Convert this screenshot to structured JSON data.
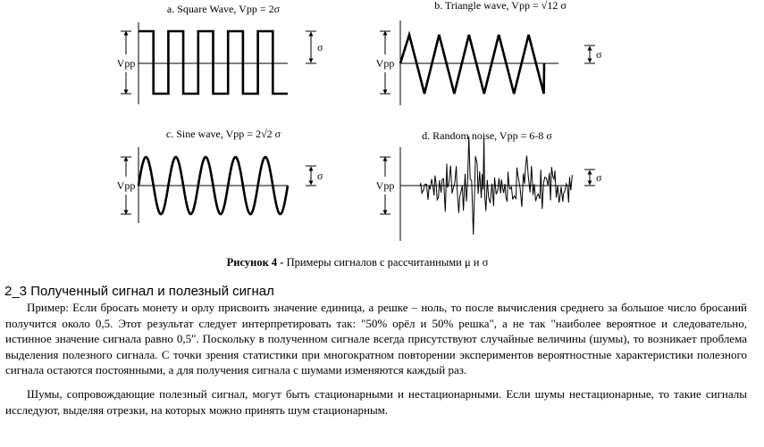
{
  "figure": {
    "panels": [
      {
        "title": "a.  Square Wave, Vpp = 2σ",
        "wave": "square",
        "vpp_label": "Vpp",
        "sigma_label": "σ"
      },
      {
        "title": "b. Triangle wave, Vpp = √12 σ",
        "wave": "triangle",
        "vpp_label": "Vpp",
        "sigma_label": "σ"
      },
      {
        "title": "c. Sine wave, Vpp = 2√2 σ",
        "wave": "sine",
        "vpp_label": "Vpp",
        "sigma_label": "σ"
      },
      {
        "title": "d. Random noise, Vpp = 6-8 σ",
        "wave": "noise",
        "vpp_label": "Vpp",
        "sigma_label": "σ"
      }
    ],
    "caption_prefix": "Рисунок 4 - ",
    "caption_text": "Примеры сигналов с рассчитанными μ и σ"
  },
  "section": {
    "heading": "2_3 Полученный сигнал и полезный сигнал",
    "paragraphs": [
      "Пример: Если бросать монету и орлу присвоить значение единица, а  решке – ноль,  то после вычисления среднего за большое число бросаний получится около 0,5. Этот результат следует интерпретировать так: \"50% орёл и 50% решка\", а не так \"наиболее вероятное и следовательно, истинное значение сигнала равно 0,5\". Поскольку в полученном сигнале всегда присутствуют случайные величины  (шумы), то возникает проблема выделения полезного сигнала. С точки зрения статистики при многократном повторении экспериментов вероятностные характеристики полезного сигнала остаются постоянными, а для получения сигнала с шумами изменяются каждый раз.",
      "Шумы, сопровождающие полезный сигнал, могут быть стационарными и нестационарными. Если шумы нестационарные, то такие сигналы исследуют, выделяя отрезки,  на которых можно принять шум стационарным."
    ]
  }
}
